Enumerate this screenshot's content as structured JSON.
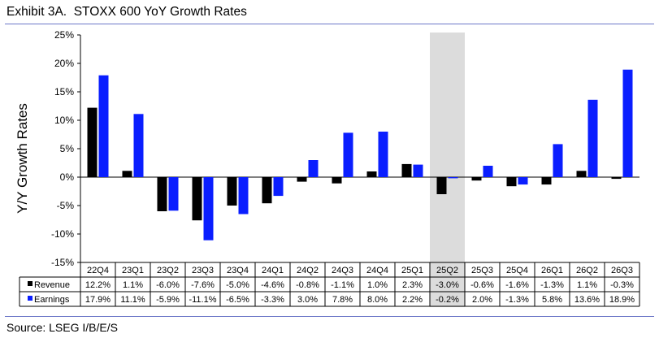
{
  "header": {
    "title": "Exhibit 3A.  STOXX 600 YoY Growth Rates"
  },
  "footer": {
    "source": "Source: LSEG I/B/E/S"
  },
  "chart_data": {
    "type": "bar",
    "ylabel": "Y/Y Growth Rates",
    "ylim": [
      -15,
      25
    ],
    "yticks": [
      "25%",
      "20%",
      "15%",
      "10%",
      "5%",
      "0%",
      "-5%",
      "-10%",
      "-15%"
    ],
    "ytick_values": [
      25,
      20,
      15,
      10,
      5,
      0,
      -5,
      -10,
      -15
    ],
    "categories": [
      "22Q4",
      "23Q1",
      "23Q2",
      "23Q3",
      "23Q4",
      "24Q1",
      "24Q2",
      "24Q3",
      "24Q4",
      "25Q1",
      "25Q2",
      "25Q3",
      "25Q4",
      "26Q1",
      "26Q2",
      "26Q3"
    ],
    "highlight_category": "25Q2",
    "grid": false,
    "legend": "data table below chart",
    "series": [
      {
        "name": "Revenue",
        "color": "#000000",
        "values": [
          12.2,
          1.1,
          -6.0,
          -7.6,
          -5.0,
          -4.6,
          -0.8,
          -1.1,
          1.0,
          2.3,
          -3.0,
          -0.6,
          -1.6,
          -1.3,
          1.1,
          -0.3
        ],
        "labels": [
          "12.2%",
          "1.1%",
          "-6.0%",
          "-7.6%",
          "-5.0%",
          "-4.6%",
          "-0.8%",
          "-1.1%",
          "1.0%",
          "2.3%",
          "-3.0%",
          "-0.6%",
          "-1.6%",
          "-1.3%",
          "1.1%",
          "-0.3%"
        ]
      },
      {
        "name": "Earnings",
        "color": "#0a1eff",
        "values": [
          17.9,
          11.1,
          -5.9,
          -11.1,
          -6.5,
          -3.3,
          3.0,
          7.8,
          8.0,
          2.2,
          -0.2,
          2.0,
          -1.3,
          5.8,
          13.6,
          18.9
        ],
        "labels": [
          "17.9%",
          "11.1%",
          "-5.9%",
          "-11.1%",
          "-6.5%",
          "-3.3%",
          "3.0%",
          "7.8%",
          "8.0%",
          "2.2%",
          "-0.2%",
          "2.0%",
          "-1.3%",
          "5.8%",
          "13.6%",
          "18.9%"
        ]
      }
    ]
  }
}
